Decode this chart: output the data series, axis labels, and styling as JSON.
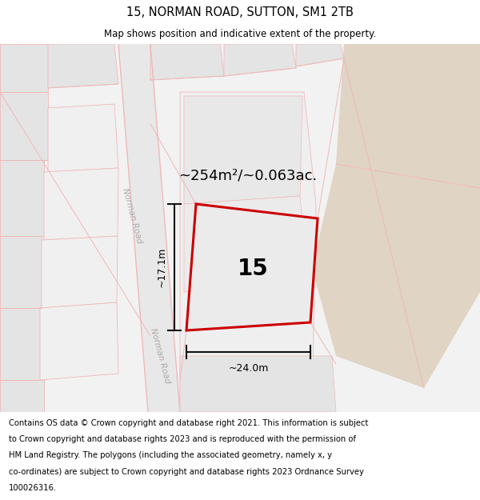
{
  "title": "15, NORMAN ROAD, SUTTON, SM1 2TB",
  "subtitle": "Map shows position and indicative extent of the property.",
  "footer_lines": [
    "Contains OS data © Crown copyright and database right 2021. This information is subject",
    "to Crown copyright and database rights 2023 and is reproduced with the permission of",
    "HM Land Registry. The polygons (including the associated geometry, namely x, y",
    "co-ordinates) are subject to Crown copyright and database rights 2023 Ordnance Survey",
    "100026316."
  ],
  "area_label": "~254m²/~0.063ac.",
  "number_label": "15",
  "dim_width": "~24.0m",
  "dim_height": "~17.1m",
  "road_label": "Norman Road",
  "bg_color": "#f2f2f2",
  "road_fill": "#e8e8e8",
  "road_stripe": "#f0b8b8",
  "tan_color": "#e0d4c4",
  "block_fill": "#e4e4e4",
  "block_edge": "#f0b8b8",
  "property_fill": "#ebebeb",
  "property_edge": "#cc0000",
  "dim_color": "#111111",
  "title_fontsize": 10.5,
  "subtitle_fontsize": 8.5,
  "footer_fontsize": 7.2,
  "area_fontsize": 13,
  "number_fontsize": 20,
  "dim_fontsize": 9,
  "road_fontsize": 7.5
}
